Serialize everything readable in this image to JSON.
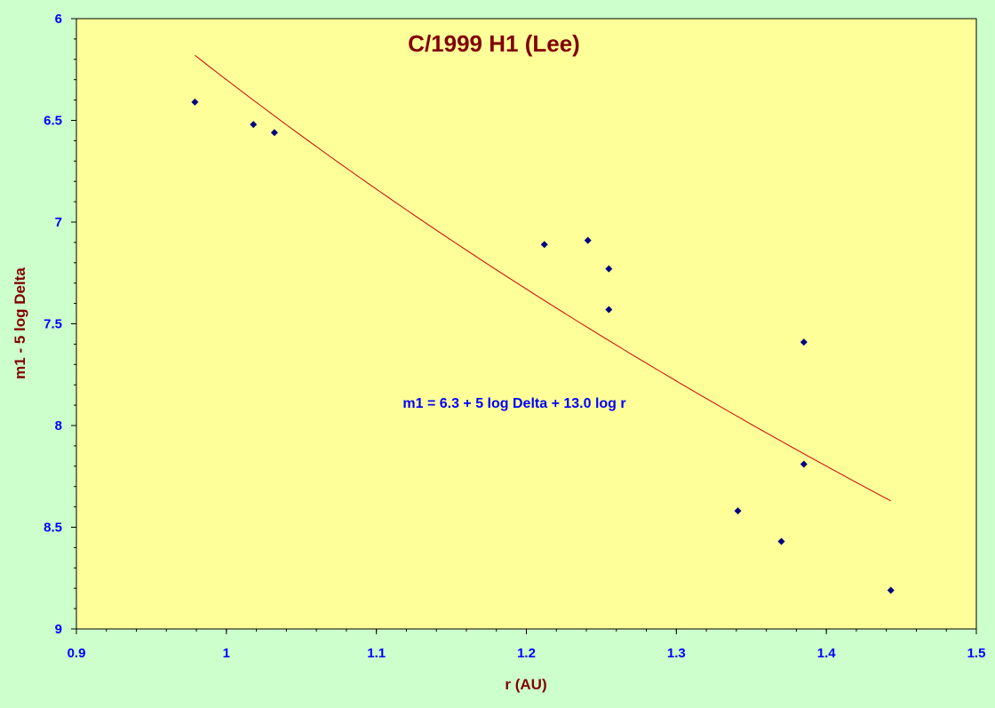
{
  "colors": {
    "background": "#ccffcc",
    "plot_area": "#ffff99",
    "points": "#000080",
    "trend_line": "#cc0000",
    "tick_labels": "#0000ff",
    "titles": "#800000"
  },
  "chart_data": {
    "type": "scatter",
    "title": "C/1999 H1 (Lee)",
    "xlabel": "r (AU)",
    "ylabel": "m1 - 5 log Delta",
    "xlim": [
      0.9,
      1.5
    ],
    "ylim": [
      6,
      9
    ],
    "y_inverted": true,
    "grid": false,
    "x_ticks": [
      "0.9",
      "1",
      "1.1",
      "1.2",
      "1.3",
      "1.4",
      "1.5"
    ],
    "y_ticks": [
      "6",
      "6.5",
      "7",
      "7.5",
      "8",
      "8.5",
      "9"
    ],
    "points": [
      {
        "x": 0.979,
        "y": 6.41
      },
      {
        "x": 1.018,
        "y": 6.52
      },
      {
        "x": 1.032,
        "y": 6.56
      },
      {
        "x": 1.212,
        "y": 7.11
      },
      {
        "x": 1.241,
        "y": 7.09
      },
      {
        "x": 1.255,
        "y": 7.23
      },
      {
        "x": 1.255,
        "y": 7.43
      },
      {
        "x": 1.341,
        "y": 8.42
      },
      {
        "x": 1.37,
        "y": 8.57
      },
      {
        "x": 1.385,
        "y": 7.59
      },
      {
        "x": 1.385,
        "y": 8.19
      },
      {
        "x": 1.443,
        "y": 8.81
      }
    ],
    "trend_line": {
      "intercept": 6.3,
      "slope_log": 13.0,
      "x_range": [
        0.979,
        1.443
      ]
    },
    "annotation": "m1 = 6.3 + 5 log Delta + 13.0 log r"
  }
}
